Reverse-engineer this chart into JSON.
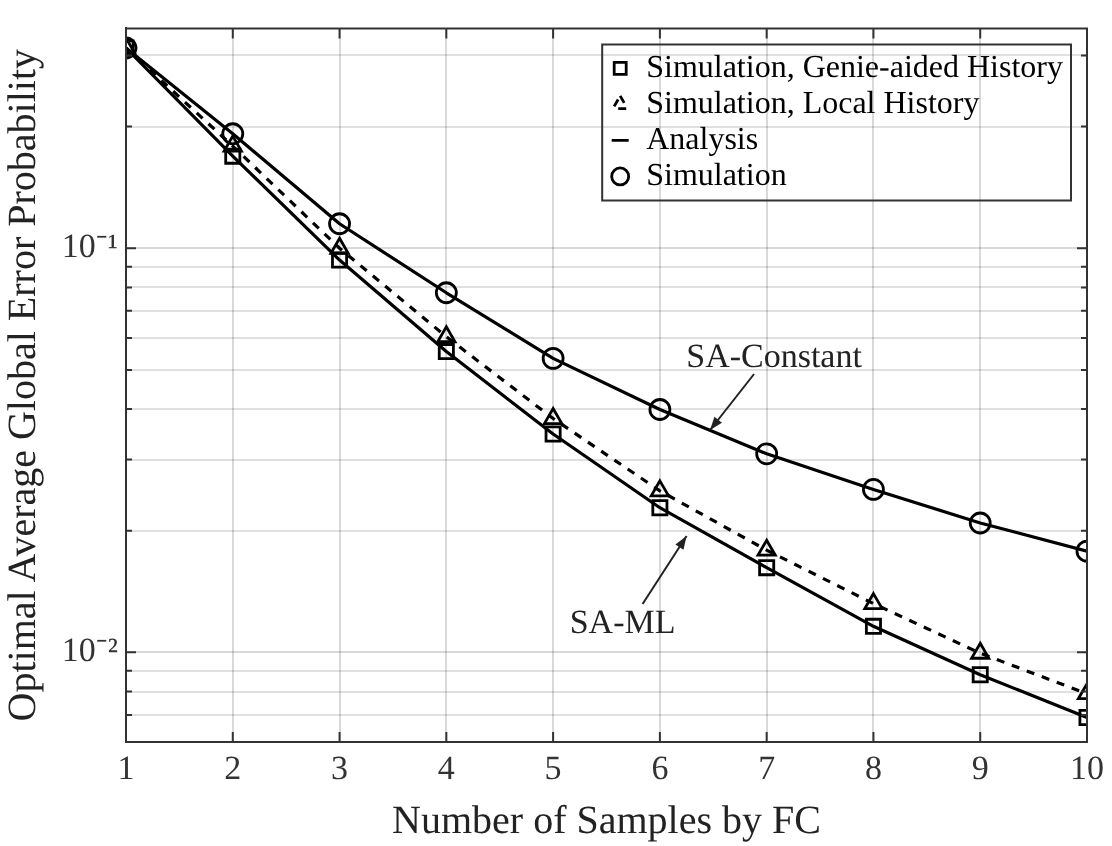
{
  "chart_data": {
    "type": "line",
    "xlabel": "Number of Samples by FC",
    "ylabel": "Optimal Average Global Error Probability",
    "x": [
      1,
      2,
      3,
      4,
      5,
      6,
      7,
      8,
      9,
      10
    ],
    "series": [
      {
        "name": "Simulation, Genie-aided History",
        "type": "scatter",
        "marker": "square",
        "color": "#000000",
        "values": [
          0.313,
          0.169,
          0.0935,
          0.0555,
          0.0347,
          0.0228,
          0.0162,
          0.0116,
          0.0088,
          0.0069
        ]
      },
      {
        "name": "Simulation, Local History",
        "type": "line",
        "marker": "triangle",
        "line_style": "dashed",
        "color": "#000000",
        "values": [
          0.313,
          0.179,
          0.1,
          0.0604,
          0.0379,
          0.0251,
          0.0179,
          0.0132,
          0.00995,
          0.0079
        ]
      },
      {
        "name": "Analysis",
        "type": "line",
        "marker": "none",
        "line_style": "solid",
        "color": "#000000",
        "values": [
          0.313,
          0.169,
          0.0935,
          0.0555,
          0.0347,
          0.0228,
          0.0162,
          0.0116,
          0.0088,
          0.0069
        ]
      },
      {
        "type": "line",
        "marker": "none",
        "line_style": "solid",
        "color": "#000000",
        "values": [
          0.313,
          0.192,
          0.115,
          0.0776,
          0.0534,
          0.0399,
          0.031,
          0.0253,
          0.0209,
          0.0178
        ]
      },
      {
        "name": "Simulation",
        "type": "scatter",
        "marker": "circle",
        "color": "#000000",
        "values": [
          0.313,
          0.192,
          0.115,
          0.0776,
          0.0534,
          0.0399,
          0.031,
          0.0253,
          0.0209,
          0.0178
        ]
      }
    ],
    "log": "y",
    "xlim": [
      1,
      10
    ],
    "xticks": [
      1,
      2,
      3,
      4,
      5,
      6,
      7,
      8,
      9,
      10
    ],
    "ylim": [
      0.006,
      0.35
    ],
    "yticks": [
      {
        "value": 0.006,
        "label": null
      },
      {
        "value": 0.007,
        "label": null
      },
      {
        "value": 0.008,
        "label": null
      },
      {
        "value": 0.009,
        "label": null
      },
      {
        "value": 0.01,
        "label": "10⁻²"
      },
      {
        "value": 0.02,
        "label": null
      },
      {
        "value": 0.03,
        "label": null
      },
      {
        "value": 0.04,
        "label": null
      },
      {
        "value": 0.05,
        "label": null
      },
      {
        "value": 0.06,
        "label": null
      },
      {
        "value": 0.07,
        "label": null
      },
      {
        "value": 0.08,
        "label": null
      },
      {
        "value": 0.09,
        "label": null
      },
      {
        "value": 0.1,
        "label": "10⁻¹"
      },
      {
        "value": 0.2,
        "label": null
      },
      {
        "value": 0.3,
        "label": null
      }
    ],
    "grid": true,
    "legend": "top right",
    "annotations": [
      {
        "text": "SA-Constant",
        "x": 6.47,
        "y": 0.0355
      },
      {
        "text": "SA-ML",
        "x": 6.25,
        "y": 0.0194
      }
    ]
  }
}
